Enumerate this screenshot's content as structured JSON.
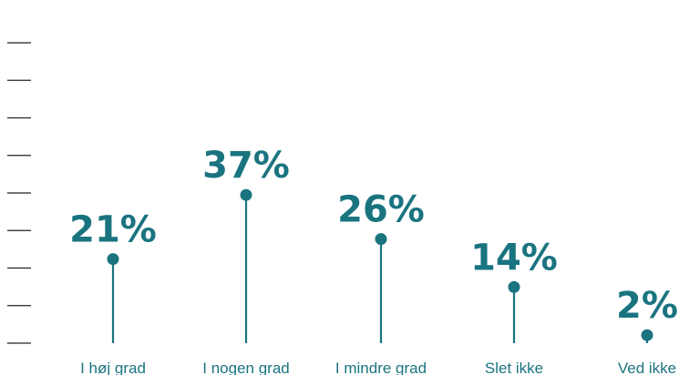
{
  "colors": {
    "accent": "#1a7480",
    "tick": "#222222",
    "background": "#ffffff"
  },
  "chart_data": {
    "type": "lollipop",
    "categories": [
      "I høj grad",
      "I nogen grad",
      "I mindre grad",
      "Slet ikke",
      "Ved ikke"
    ],
    "values": [
      21,
      37,
      26,
      14,
      2
    ],
    "value_labels": [
      "21%",
      "37%",
      "26%",
      "14%",
      "2%"
    ],
    "unit": "%",
    "ylim": [
      0,
      40
    ],
    "grid": false,
    "legend": "none"
  }
}
